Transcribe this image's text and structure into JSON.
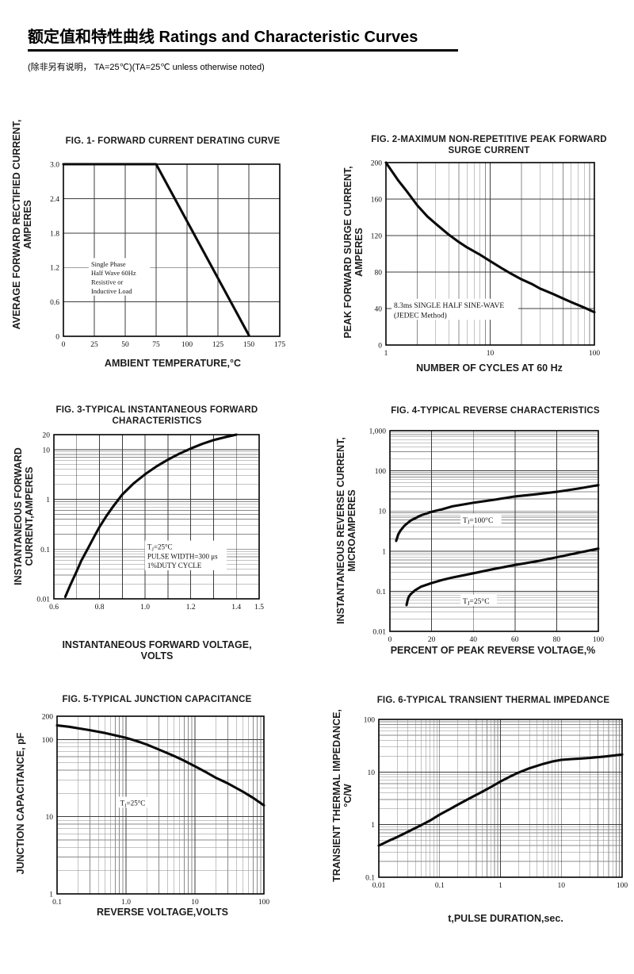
{
  "header": {
    "title": "额定值和特性曲线 Ratings and Characteristic Curves",
    "note": "(除非另有说明， TA=25℃)(TA=25℃  unless otherwise noted)"
  },
  "chart_data": [
    {
      "id": "fig1",
      "type": "line",
      "title": "FIG. 1- FORWARD CURRENT DERATING CURVE",
      "xlabel": "AMBIENT TEMPERATURE,°C",
      "ylabel": "AVERAGE FORWARD RECTIFIED CURRENT,\nAMPERES",
      "x": {
        "scale": "linear",
        "min": 0,
        "max": 175,
        "grid": [
          25,
          50,
          75,
          100,
          125,
          150
        ],
        "ticks": [
          [
            0,
            "0"
          ],
          [
            25,
            "25"
          ],
          [
            50,
            "50"
          ],
          [
            75,
            "75"
          ],
          [
            100,
            "100"
          ],
          [
            125,
            "125"
          ],
          [
            150,
            "150"
          ],
          [
            175,
            "175"
          ]
        ]
      },
      "y": {
        "scale": "linear",
        "min": 0,
        "max": 3.0,
        "grid": [
          0.6,
          1.2,
          1.8,
          2.4
        ],
        "ticks": [
          [
            3.0,
            "3.0"
          ],
          [
            2.4,
            "2.4"
          ],
          [
            1.8,
            "1.8"
          ],
          [
            1.2,
            "1.2"
          ],
          [
            0.6,
            "0.6"
          ],
          [
            0,
            "0"
          ]
        ]
      },
      "series": [
        {
          "name": "derating-curve",
          "points": [
            [
              0,
              3
            ],
            [
              75,
              3
            ],
            [
              150,
              0.02
            ]
          ]
        }
      ],
      "annotations": [
        {
          "text": "Single Phase\nHalf Wave 60Hz\nResistive or\nInductive Load",
          "fx": 0.128,
          "fy": 0.555,
          "fs": 8.5
        }
      ]
    },
    {
      "id": "fig2",
      "type": "line",
      "title": "FIG. 2-MAXIMUM NON-REPETITIVE PEAK FORWARD\nSURGE CURRENT",
      "xlabel": "NUMBER OF CYCLES AT 60 Hz",
      "ylabel": "PEAK  FORWARD SURGE CURRENT,\nAMPERES",
      "x": {
        "scale": "log",
        "min": 1,
        "max": 100,
        "ticks": [
          [
            1,
            "1"
          ],
          [
            10,
            "10"
          ],
          [
            100,
            "100"
          ]
        ]
      },
      "y": {
        "scale": "linear",
        "min": 0,
        "max": 200,
        "grid": [
          40,
          80,
          120,
          160
        ],
        "ticks": [
          [
            200,
            "200"
          ],
          [
            160,
            "160"
          ],
          [
            120,
            "120"
          ],
          [
            80,
            "80"
          ],
          [
            40,
            "40"
          ],
          [
            0,
            "0"
          ]
        ]
      },
      "series": [
        {
          "name": "surge-current",
          "points": [
            [
              1,
              200
            ],
            [
              1.3,
              181
            ],
            [
              1.6,
              168
            ],
            [
              2,
              153
            ],
            [
              2.5,
              141
            ],
            [
              3,
              133
            ],
            [
              4,
              121
            ],
            [
              5,
              113
            ],
            [
              6,
              107
            ],
            [
              8,
              99
            ],
            [
              10,
              92
            ],
            [
              13,
              84
            ],
            [
              16,
              78
            ],
            [
              20,
              72
            ],
            [
              25,
              67
            ],
            [
              30,
              62
            ],
            [
              40,
              56
            ],
            [
              50,
              51
            ],
            [
              60,
              47
            ],
            [
              80,
              41
            ],
            [
              100,
              36
            ]
          ]
        }
      ],
      "annotations": [
        {
          "text": "8.3ms SINGLE HALF SINE-WAVE\n(JEDEC Method)",
          "fx": 0.038,
          "fy": 0.755,
          "fs": 9.5
        }
      ]
    },
    {
      "id": "fig3",
      "type": "line",
      "title": "FIG. 3-TYPICAL INSTANTANEOUS FORWARD\nCHARACTERISTICS",
      "xlabel": "INSTANTANEOUS FORWARD VOLTAGE,\nVOLTS",
      "ylabel": "INSTANTANEOUS FORWARD\nCURRENT,AMPERES",
      "x": {
        "scale": "linear",
        "min": 0.6,
        "max": 1.5,
        "grid": [
          0.7,
          0.8,
          0.9,
          1.0,
          1.1,
          1.2,
          1.3,
          1.4
        ],
        "ticks": [
          [
            0.6,
            "0.6"
          ],
          [
            0.8,
            "0.8"
          ],
          [
            1.0,
            "1.0"
          ],
          [
            1.2,
            "1.2"
          ],
          [
            1.4,
            "1.4"
          ],
          [
            1.5,
            "1.5"
          ]
        ]
      },
      "y": {
        "scale": "log",
        "min": 0.01,
        "max": 20,
        "ticks": [
          [
            20,
            "20"
          ],
          [
            10,
            "10"
          ],
          [
            1,
            "1"
          ],
          [
            0.1,
            "0.1"
          ],
          [
            0.01,
            "0.01"
          ]
        ]
      },
      "series": [
        {
          "name": "forward-vi",
          "points": [
            [
              0.65,
              0.011
            ],
            [
              0.67,
              0.018
            ],
            [
              0.7,
              0.036
            ],
            [
              0.72,
              0.058
            ],
            [
              0.75,
              0.105
            ],
            [
              0.78,
              0.19
            ],
            [
              0.8,
              0.28
            ],
            [
              0.83,
              0.46
            ],
            [
              0.86,
              0.72
            ],
            [
              0.9,
              1.25
            ],
            [
              0.95,
              2.1
            ],
            [
              1.0,
              3.2
            ],
            [
              1.05,
              4.6
            ],
            [
              1.1,
              6.3
            ],
            [
              1.15,
              8.3
            ],
            [
              1.2,
              10.5
            ],
            [
              1.25,
              13
            ],
            [
              1.3,
              15.5
            ],
            [
              1.35,
              17.8
            ],
            [
              1.4,
              20
            ]
          ]
        }
      ],
      "annotations": [
        {
          "text": "TJ=25°C\nPULSE WIDTH=300 μs\n1%DUTY CYCLE",
          "fx": 0.455,
          "fy": 0.655,
          "fs": 9
        }
      ]
    },
    {
      "id": "fig4",
      "type": "line",
      "title": "FIG. 4-TYPICAL REVERSE CHARACTERISTICS",
      "xlabel": "PERCENT OF PEAK REVERSE VOLTAGE,%",
      "ylabel": "INSTANTANEOUS REVERSE CURRENT,\nMICROAMPERES",
      "x": {
        "scale": "linear",
        "min": 0,
        "max": 100,
        "grid": [
          20,
          40,
          60,
          80
        ],
        "ticks": [
          [
            0,
            "0"
          ],
          [
            20,
            "20"
          ],
          [
            40,
            "40"
          ],
          [
            60,
            "60"
          ],
          [
            80,
            "80"
          ],
          [
            100,
            "100"
          ]
        ]
      },
      "y": {
        "scale": "log",
        "min": 0.01,
        "max": 1000,
        "ticks": [
          [
            1000,
            "1,000"
          ],
          [
            100,
            "100"
          ],
          [
            10,
            "10"
          ],
          [
            1,
            "1"
          ],
          [
            0.1,
            "0.1"
          ],
          [
            0.01,
            "0.01"
          ]
        ]
      },
      "series": [
        {
          "name": "tj-100c",
          "points": [
            [
              3,
              1.8
            ],
            [
              4,
              2.6
            ],
            [
              5,
              3.2
            ],
            [
              7,
              4.3
            ],
            [
              10,
              5.8
            ],
            [
              15,
              7.8
            ],
            [
              20,
              9.5
            ],
            [
              25,
              11
            ],
            [
              30,
              13
            ],
            [
              40,
              16
            ],
            [
              50,
              19
            ],
            [
              60,
              23
            ],
            [
              70,
              26
            ],
            [
              80,
              30
            ],
            [
              90,
              36
            ],
            [
              100,
              44
            ]
          ]
        },
        {
          "name": "tj-25c",
          "points": [
            [
              8,
              0.045
            ],
            [
              8.5,
              0.06
            ],
            [
              9,
              0.072
            ],
            [
              10,
              0.085
            ],
            [
              12,
              0.105
            ],
            [
              15,
              0.13
            ],
            [
              20,
              0.16
            ],
            [
              25,
              0.19
            ],
            [
              30,
              0.22
            ],
            [
              40,
              0.28
            ],
            [
              50,
              0.36
            ],
            [
              60,
              0.45
            ],
            [
              70,
              0.55
            ],
            [
              80,
              0.7
            ],
            [
              90,
              0.9
            ],
            [
              100,
              1.15
            ]
          ]
        }
      ],
      "annotations": [
        {
          "text": "TJ=100°C",
          "fx": 0.35,
          "fy": 0.42,
          "fs": 9.5
        },
        {
          "text": "TJ=25°C",
          "fx": 0.35,
          "fy": 0.825,
          "fs": 9.5
        }
      ]
    },
    {
      "id": "fig5",
      "type": "line",
      "title": "FIG. 5-TYPICAL JUNCTION CAPACITANCE",
      "xlabel": "REVERSE VOLTAGE,VOLTS",
      "ylabel": "JUNCTION CAPACITANCE, pF",
      "x": {
        "scale": "log",
        "min": 0.1,
        "max": 100,
        "ticks": [
          [
            0.1,
            "0.1"
          ],
          [
            1,
            "1.0"
          ],
          [
            10,
            "10"
          ],
          [
            100,
            "100"
          ]
        ]
      },
      "y": {
        "scale": "log",
        "min": 1,
        "max": 200,
        "ticks": [
          [
            200,
            "200"
          ],
          [
            100,
            "100"
          ],
          [
            10,
            "10"
          ],
          [
            1,
            "1"
          ]
        ]
      },
      "series": [
        {
          "name": "junction-capacitance",
          "points": [
            [
              0.1,
              152
            ],
            [
              0.15,
              146
            ],
            [
              0.2,
              140
            ],
            [
              0.3,
              132
            ],
            [
              0.5,
              121
            ],
            [
              0.7,
              113
            ],
            [
              1,
              105
            ],
            [
              1.5,
              94
            ],
            [
              2,
              86
            ],
            [
              3,
              74
            ],
            [
              5,
              61
            ],
            [
              7,
              53
            ],
            [
              10,
              45
            ],
            [
              15,
              37
            ],
            [
              20,
              32
            ],
            [
              30,
              27
            ],
            [
              50,
              21
            ],
            [
              70,
              17.5
            ],
            [
              100,
              14
            ]
          ]
        }
      ],
      "annotations": [
        {
          "text": "TJ=25°C",
          "fx": 0.305,
          "fy": 0.462,
          "fs": 9
        }
      ]
    },
    {
      "id": "fig6",
      "type": "line",
      "title": "FIG. 6-TYPICAL TRANSIENT THERMAL IMPEDANCE",
      "xlabel": "t,PULSE DURATION,sec.",
      "ylabel": "TRANSIENT THERMAL IMPEDANCE,\n°C/W",
      "x": {
        "scale": "log",
        "min": 0.01,
        "max": 100,
        "ticks": [
          [
            0.01,
            "0.01"
          ],
          [
            0.1,
            "0.1"
          ],
          [
            1,
            "1"
          ],
          [
            10,
            "10"
          ],
          [
            100,
            "100"
          ]
        ]
      },
      "y": {
        "scale": "log",
        "min": 0.1,
        "max": 100,
        "ticks": [
          [
            100,
            "100"
          ],
          [
            10,
            "10"
          ],
          [
            1,
            "1"
          ],
          [
            0.1,
            "0.1"
          ]
        ]
      },
      "series": [
        {
          "name": "thermal-impedance",
          "points": [
            [
              0.01,
              0.4
            ],
            [
              0.015,
              0.5
            ],
            [
              0.02,
              0.58
            ],
            [
              0.03,
              0.73
            ],
            [
              0.05,
              0.98
            ],
            [
              0.07,
              1.2
            ],
            [
              0.1,
              1.55
            ],
            [
              0.15,
              2.0
            ],
            [
              0.2,
              2.4
            ],
            [
              0.3,
              3.1
            ],
            [
              0.5,
              4.2
            ],
            [
              0.7,
              5.2
            ],
            [
              1,
              6.6
            ],
            [
              1.5,
              8.4
            ],
            [
              2,
              9.8
            ],
            [
              3,
              11.8
            ],
            [
              5,
              14.2
            ],
            [
              7,
              15.8
            ],
            [
              10,
              17
            ],
            [
              15,
              17.6
            ],
            [
              20,
              18
            ],
            [
              30,
              18.6
            ],
            [
              50,
              19.6
            ],
            [
              70,
              20.5
            ],
            [
              100,
              21.5
            ]
          ]
        }
      ],
      "annotations": []
    }
  ]
}
